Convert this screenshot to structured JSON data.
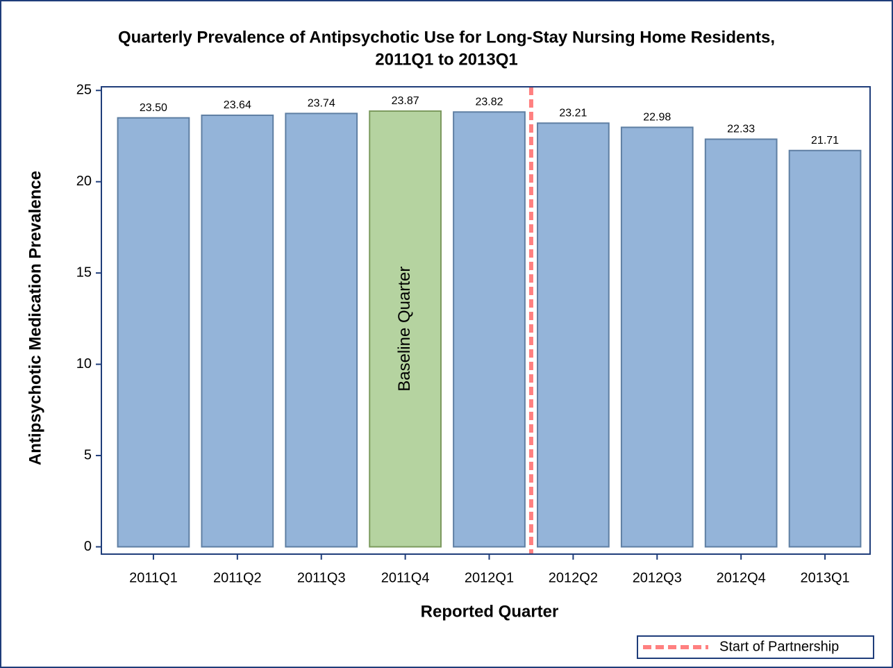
{
  "chart_data": {
    "type": "bar",
    "title": "Quarterly Prevalence of Antipsychotic Use for Long-Stay Nursing Home Residents,",
    "subtitle": "2011Q1 to 2013Q1",
    "x_label": "Reported Quarter",
    "y_label": "Antipsychotic Medication Prevalence",
    "categories": [
      "2011Q1",
      "2011Q2",
      "2011Q3",
      "2011Q4",
      "2012Q1",
      "2012Q2",
      "2012Q3",
      "2012Q4",
      "2013Q1"
    ],
    "values": [
      23.5,
      23.64,
      23.74,
      23.87,
      23.82,
      23.21,
      22.98,
      22.33,
      21.71
    ],
    "value_labels": [
      "23.50",
      "23.64",
      "23.74",
      "23.87",
      "23.82",
      "23.21",
      "22.98",
      "22.33",
      "21.71"
    ],
    "color": "#94b4d9",
    "highlight": {
      "category": "2011Q4",
      "color": "#b5d3a0",
      "label": "Baseline Quarter"
    },
    "reference_line": {
      "after_category": "2012Q1",
      "color": "#ff8080",
      "label": "Start of Partnership"
    },
    "ylim": [
      -0.4,
      25.2
    ],
    "yticks": [
      0,
      5,
      10,
      15,
      20,
      25
    ],
    "grid": false
  }
}
